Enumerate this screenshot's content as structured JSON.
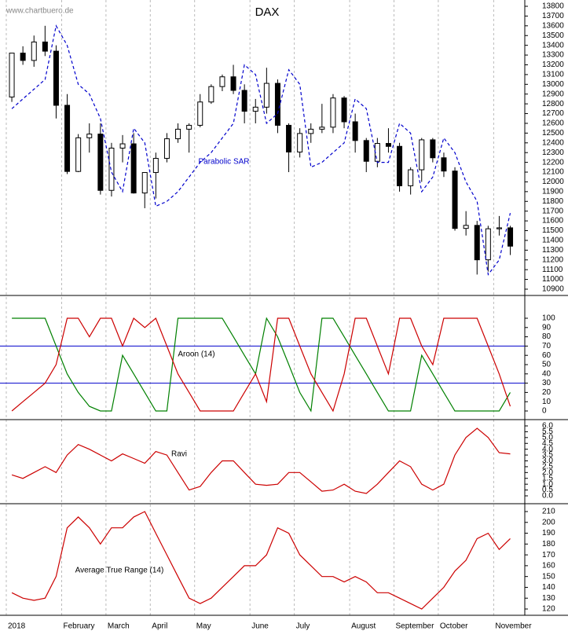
{
  "watermark": "www.chartbuero.de",
  "chart_data": [
    {
      "type": "candlestick",
      "title": "DAX",
      "open": [
        12870,
        13320,
        13245,
        13434,
        13340,
        12785,
        12107,
        12452,
        12490,
        11913,
        12346,
        12390,
        11886,
        12096,
        12241,
        12442,
        12540,
        12580,
        12819,
        12977,
        13077,
        12938,
        12724,
        12766,
        13010,
        12580,
        12306,
        12496,
        12540,
        12561,
        12860,
        12616,
        12424,
        12211,
        12394,
        12364,
        11960,
        12124,
        12431,
        12247,
        12111,
        11523,
        11554,
        11201,
        11519,
        11529
      ],
      "high": [
        13320,
        13390,
        13500,
        13600,
        13400,
        12900,
        12490,
        12600,
        12600,
        12400,
        12480,
        12500,
        12100,
        12300,
        12500,
        12600,
        12600,
        12900,
        13000,
        13100,
        13200,
        13000,
        12850,
        13170,
        13050,
        12600,
        12550,
        12600,
        12800,
        12900,
        12880,
        12700,
        12450,
        12450,
        12550,
        12400,
        12150,
        12450,
        12450,
        12300,
        12150,
        11700,
        11600,
        11550,
        11650,
        11550
      ],
      "low": [
        12820,
        13200,
        13180,
        13290,
        12650,
        12080,
        12100,
        12300,
        11870,
        11850,
        12200,
        11880,
        11730,
        11830,
        12200,
        12400,
        12300,
        12560,
        12800,
        12930,
        12900,
        12600,
        12600,
        12700,
        12500,
        12100,
        12250,
        12400,
        12500,
        12500,
        12550,
        12300,
        12100,
        12150,
        12300,
        11900,
        11870,
        12000,
        12200,
        12050,
        11500,
        11450,
        11050,
        11080,
        11450,
        11250
      ],
      "close": [
        13320,
        13245,
        13434,
        13340,
        12785,
        12107,
        12452,
        12490,
        11913,
        12346,
        12390,
        11886,
        12096,
        12241,
        12442,
        12540,
        12580,
        12819,
        12977,
        13077,
        12938,
        12724,
        12766,
        13010,
        12580,
        12306,
        12496,
        12540,
        12561,
        12860,
        12616,
        12424,
        12211,
        12394,
        12364,
        11960,
        12124,
        12431,
        12247,
        12111,
        11523,
        11554,
        11201,
        11519,
        11529,
        11341
      ],
      "candle_color": "#000000",
      "series": [
        {
          "name": "Parabolic SAR",
          "color": "#0000cc",
          "dashed": true,
          "values": [
            12750,
            12850,
            12950,
            13050,
            13600,
            13400,
            13000,
            12900,
            12650,
            12100,
            11900,
            12550,
            12400,
            11750,
            11800,
            11900,
            12050,
            12200,
            12300,
            12450,
            12600,
            13200,
            13100,
            12600,
            12700,
            13150,
            13000,
            12150,
            12200,
            12300,
            12400,
            12850,
            12750,
            12200,
            12200,
            12600,
            12500,
            11900,
            12050,
            12450,
            12300,
            12000,
            11800,
            11050,
            11200,
            11680
          ]
        }
      ],
      "ylim": [
        10900,
        13800
      ],
      "yticks": [
        10900,
        11000,
        11100,
        11200,
        11300,
        11400,
        11500,
        11600,
        11700,
        11800,
        11900,
        12000,
        12100,
        12200,
        12300,
        12400,
        12500,
        12600,
        12700,
        12800,
        12900,
        13000,
        13100,
        13200,
        13300,
        13400,
        13500,
        13600,
        13700,
        13800
      ]
    },
    {
      "type": "line",
      "title": "Aroon (14)",
      "series": [
        {
          "color": "#008000",
          "values": [
            100,
            100,
            100,
            100,
            70,
            40,
            20,
            5,
            0,
            0,
            60,
            40,
            20,
            0,
            0,
            100,
            100,
            100,
            100,
            100,
            80,
            60,
            40,
            100,
            80,
            50,
            20,
            0,
            100,
            100,
            80,
            60,
            40,
            20,
            0,
            0,
            0,
            60,
            40,
            20,
            0,
            0,
            0,
            0,
            0,
            20
          ]
        },
        {
          "color": "#cc0000",
          "values": [
            0,
            10,
            20,
            30,
            50,
            100,
            100,
            80,
            100,
            100,
            70,
            100,
            90,
            100,
            70,
            40,
            20,
            0,
            0,
            0,
            0,
            20,
            40,
            10,
            100,
            100,
            70,
            40,
            20,
            0,
            40,
            100,
            100,
            70,
            40,
            100,
            100,
            70,
            50,
            100,
            100,
            100,
            100,
            70,
            40,
            5
          ]
        }
      ],
      "hlines": [
        70,
        30
      ],
      "hline_color": "#0000cc",
      "ylim": [
        0,
        100
      ],
      "yticks": [
        0,
        10,
        20,
        30,
        40,
        50,
        60,
        70,
        80,
        90,
        100
      ]
    },
    {
      "type": "line",
      "title": "Ravi",
      "series": [
        {
          "color": "#cc0000",
          "values": [
            1.8,
            1.5,
            2.0,
            2.5,
            2.0,
            3.5,
            4.4,
            4.0,
            3.5,
            3.0,
            3.6,
            3.2,
            2.8,
            3.8,
            3.5,
            2.0,
            0.5,
            0.8,
            2.0,
            3.0,
            3.0,
            2.0,
            1.0,
            0.9,
            1.0,
            2.0,
            2.0,
            1.2,
            0.4,
            0.5,
            1.0,
            0.4,
            0.2,
            1.0,
            2.0,
            3.0,
            2.5,
            1.0,
            0.5,
            1.0,
            3.5,
            5.0,
            5.8,
            5.0,
            3.7,
            3.6
          ]
        }
      ],
      "ylim": [
        0,
        6
      ],
      "yticks": [
        {
          "value": 0,
          "label": "0.0"
        },
        0.5,
        {
          "value": 1,
          "label": "1.0"
        },
        1.5,
        {
          "value": 2,
          "label": "2.0"
        },
        2.5,
        {
          "value": 3,
          "label": "3.0"
        },
        3.5,
        {
          "value": 4,
          "label": "4.0"
        },
        4.5,
        {
          "value": 5,
          "label": "5.0"
        },
        5.5,
        {
          "value": 6,
          "label": "6.0"
        }
      ]
    },
    {
      "type": "line",
      "title": "Average True Range (14)",
      "categories": [
        "2018",
        null,
        null,
        null,
        null,
        "February",
        null,
        null,
        null,
        "March",
        null,
        null,
        null,
        "April",
        null,
        null,
        null,
        "May",
        null,
        null,
        null,
        null,
        "June",
        null,
        null,
        null,
        "July",
        null,
        null,
        null,
        null,
        "August",
        null,
        null,
        null,
        "September",
        null,
        null,
        null,
        "October",
        null,
        null,
        null,
        null,
        "November",
        null
      ],
      "series": [
        {
          "color": "#cc0000",
          "values": [
            135,
            130,
            128,
            130,
            150,
            195,
            205,
            195,
            180,
            195,
            195,
            205,
            210,
            190,
            170,
            150,
            130,
            125,
            130,
            140,
            150,
            160,
            160,
            170,
            195,
            190,
            170,
            160,
            150,
            150,
            145,
            150,
            145,
            135,
            135,
            130,
            125,
            120,
            130,
            140,
            155,
            165,
            185,
            190,
            175,
            185
          ]
        }
      ],
      "ylim": [
        120,
        210
      ],
      "yticks": [
        120,
        130,
        140,
        150,
        160,
        170,
        180,
        190,
        200,
        210
      ]
    }
  ]
}
